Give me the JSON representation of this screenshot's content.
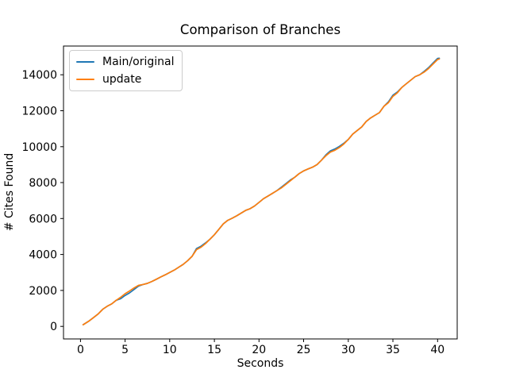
{
  "figure": {
    "background": "#ffffff",
    "frame_color": "#000000"
  },
  "chart_data": {
    "type": "line",
    "title": "Comparison of Branches",
    "xlabel": "Seconds",
    "ylabel": "# Cites Found",
    "xlim": [
      -1.9,
      42.2
    ],
    "ylim": [
      -700,
      15600
    ],
    "xticks": [
      0,
      5,
      10,
      15,
      20,
      25,
      30,
      35,
      40
    ],
    "yticks": [
      0,
      2000,
      4000,
      6000,
      8000,
      10000,
      12000,
      14000
    ],
    "grid": false,
    "legend": {
      "position": "upper-left"
    },
    "x": [
      0.3,
      1,
      1.5,
      2,
      2.5,
      3,
      3.5,
      4,
      4.5,
      5,
      5.5,
      6,
      6.5,
      7,
      7.5,
      8,
      8.5,
      9,
      9.5,
      10,
      10.5,
      11,
      11.5,
      12,
      12.5,
      13,
      13.5,
      14,
      14.5,
      15,
      15.5,
      16,
      16.5,
      17,
      17.5,
      18,
      18.5,
      19,
      19.5,
      20,
      20.5,
      21,
      21.5,
      22,
      22.5,
      23,
      23.5,
      24,
      24.5,
      25,
      25.5,
      26,
      26.5,
      27,
      27.5,
      28,
      28.5,
      29,
      29.5,
      30,
      30.5,
      31,
      31.5,
      32,
      32.5,
      33,
      33.5,
      34,
      34.5,
      35,
      35.5,
      36,
      36.5,
      37,
      37.5,
      38,
      38.5,
      39,
      39.5,
      40,
      40.2
    ],
    "series": [
      {
        "name": "Main/original",
        "color": "#1f77b4",
        "values": [
          90,
          310,
          500,
          700,
          950,
          1120,
          1250,
          1450,
          1540,
          1720,
          1860,
          2050,
          2240,
          2330,
          2390,
          2500,
          2620,
          2750,
          2870,
          3000,
          3130,
          3290,
          3450,
          3650,
          3900,
          4330,
          4460,
          4640,
          4850,
          5100,
          5400,
          5700,
          5900,
          6020,
          6150,
          6300,
          6450,
          6550,
          6700,
          6900,
          7100,
          7250,
          7400,
          7550,
          7740,
          7940,
          8140,
          8300,
          8500,
          8650,
          8760,
          8860,
          9000,
          9250,
          9550,
          9770,
          9870,
          10010,
          10190,
          10400,
          10700,
          10900,
          11100,
          11400,
          11600,
          11750,
          11900,
          12250,
          12500,
          12860,
          13040,
          13300,
          13500,
          13700,
          13900,
          14000,
          14190,
          14400,
          14660,
          14910,
          14920
        ]
      },
      {
        "name": "update",
        "color": "#ff7f0e",
        "values": [
          90,
          310,
          500,
          700,
          950,
          1120,
          1250,
          1450,
          1620,
          1820,
          1970,
          2140,
          2280,
          2330,
          2390,
          2500,
          2620,
          2750,
          2870,
          3000,
          3130,
          3290,
          3450,
          3650,
          3900,
          4270,
          4400,
          4600,
          4850,
          5100,
          5400,
          5700,
          5900,
          6020,
          6150,
          6300,
          6450,
          6550,
          6700,
          6900,
          7100,
          7250,
          7400,
          7550,
          7700,
          7900,
          8100,
          8300,
          8500,
          8650,
          8760,
          8860,
          9000,
          9250,
          9500,
          9700,
          9800,
          9950,
          10150,
          10400,
          10700,
          10900,
          11100,
          11400,
          11600,
          11750,
          11900,
          12250,
          12450,
          12800,
          13000,
          13300,
          13500,
          13700,
          13900,
          14000,
          14150,
          14350,
          14600,
          14850,
          14880
        ]
      }
    ]
  }
}
